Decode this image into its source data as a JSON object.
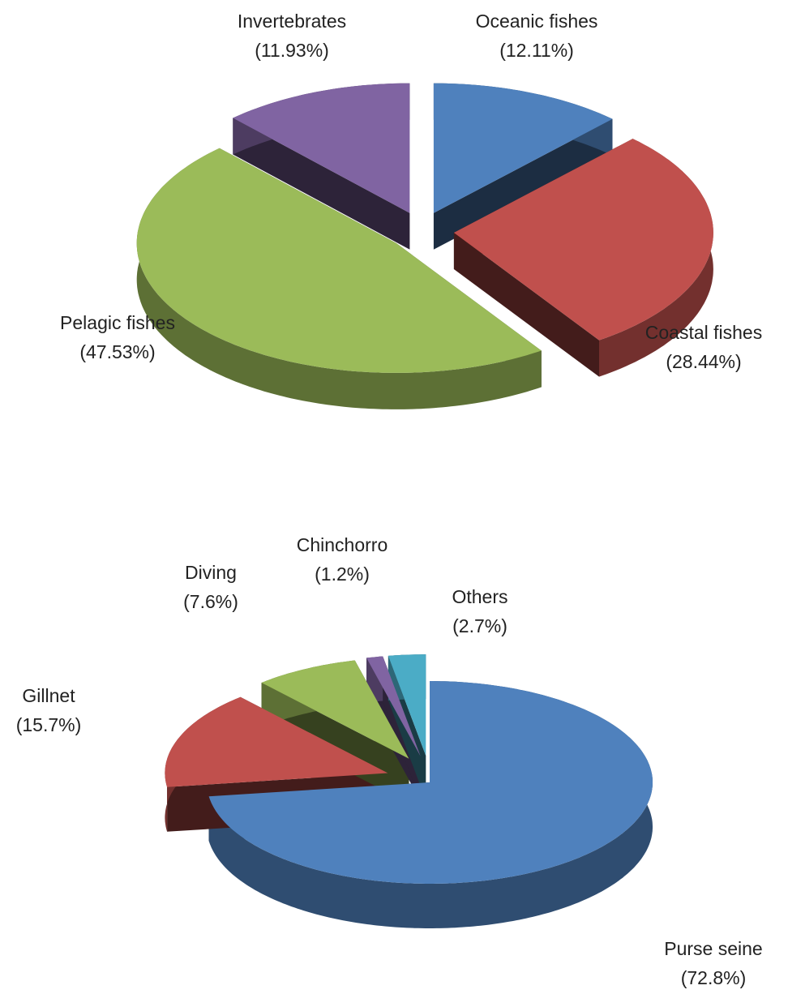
{
  "chart_data": [
    {
      "type": "pie",
      "categories": [
        "Oceanic fishes",
        "Coastal fishes",
        "Pelagic fishes",
        "Invertebrates"
      ],
      "values": [
        12.11,
        28.44,
        47.53,
        11.93
      ],
      "value_labels": [
        "(12.11%)",
        "(28.44%)",
        "(47.53%)",
        "(11.93%)"
      ],
      "colors": [
        "#4f81bd",
        "#c0504d",
        "#9bbb59",
        "#8064a2"
      ]
    },
    {
      "type": "pie",
      "categories": [
        "Purse seine",
        "Gillnet",
        "Diving",
        "Chinchorro",
        "Others"
      ],
      "values": [
        72.8,
        15.7,
        7.6,
        1.2,
        2.7
      ],
      "value_labels": [
        "(72.8%)",
        "(15.7%)",
        "(7.6%)",
        "(1.2%)",
        "(2.7%)"
      ],
      "colors": [
        "#4f81bd",
        "#c0504d",
        "#9bbb59",
        "#8064a2",
        "#4bacc6"
      ]
    }
  ]
}
